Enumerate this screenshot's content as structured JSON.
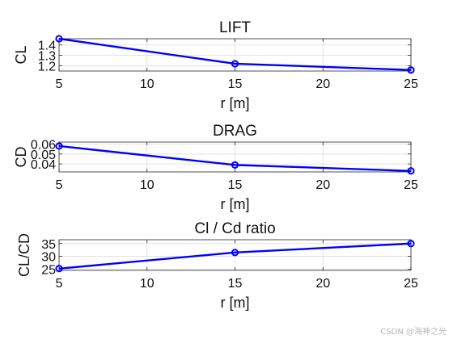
{
  "watermark": "CSDN @海神之光",
  "chart_data": [
    {
      "type": "line",
      "title": "LIFT",
      "xlabel": "r [m]",
      "ylabel": "CL",
      "x": [
        5,
        15,
        25
      ],
      "series": [
        {
          "values": [
            1.46,
            1.22,
            1.16
          ],
          "color": "#0000ff",
          "marker": "circle"
        }
      ],
      "xlim": [
        5,
        25
      ],
      "ylim": [
        1.15,
        1.46
      ],
      "xticks": [
        5,
        10,
        15,
        20,
        25
      ],
      "xtick_labels": [
        "5",
        "10",
        "15",
        "20",
        "25"
      ],
      "yticks": [
        1.2,
        1.3,
        1.4
      ],
      "ytick_labels": [
        "1.2",
        "1.3",
        "1.4"
      ],
      "grid": true
    },
    {
      "type": "line",
      "title": "DRAG",
      "xlabel": "r [m]",
      "ylabel": "CD",
      "x": [
        5,
        15,
        25
      ],
      "series": [
        {
          "values": [
            0.058,
            0.039,
            0.033
          ],
          "color": "#0000ff",
          "marker": "circle"
        }
      ],
      "xlim": [
        5,
        25
      ],
      "ylim": [
        0.032,
        0.062
      ],
      "xticks": [
        5,
        10,
        15,
        20,
        25
      ],
      "xtick_labels": [
        "5",
        "10",
        "15",
        "20",
        "25"
      ],
      "yticks": [
        0.04,
        0.05,
        0.06
      ],
      "ytick_labels": [
        "0.04",
        "0.05",
        "0.06"
      ],
      "grid": true
    },
    {
      "type": "line",
      "title": "Cl / Cd ratio",
      "xlabel": "r [m]",
      "ylabel": "CL/CD",
      "x": [
        5,
        15,
        25
      ],
      "series": [
        {
          "values": [
            25.2,
            31.5,
            35
          ],
          "color": "#0000ff",
          "marker": "circle"
        }
      ],
      "xlim": [
        5,
        25
      ],
      "ylim": [
        24.5,
        36.5
      ],
      "xticks": [
        5,
        10,
        15,
        20,
        25
      ],
      "xtick_labels": [
        "5",
        "10",
        "15",
        "20",
        "25"
      ],
      "yticks": [
        25,
        30,
        35
      ],
      "ytick_labels": [
        "25",
        "30",
        "35"
      ],
      "grid": true
    }
  ]
}
